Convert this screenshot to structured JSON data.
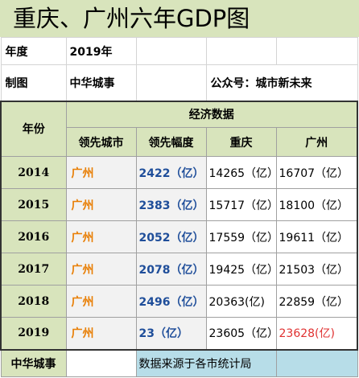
{
  "title": "重庆、广州六年GDP图",
  "meta": {
    "year_label": "年度",
    "year_value": "2019年",
    "maker_label": "制图",
    "maker_value": "中华城事",
    "account": "公众号：城市新未来"
  },
  "headers": {
    "year": "年份",
    "group": "经济数据",
    "lead_city": "领先城市",
    "lead_margin": "领先幅度",
    "chongqing": "重庆",
    "guangzhou": "广州"
  },
  "rows": [
    {
      "year": "2014",
      "lead_city": "广州",
      "margin": "2422（亿）",
      "chongqing": "14265（亿）",
      "guangzhou": "16707（亿）"
    },
    {
      "year": "2015",
      "lead_city": "广州",
      "margin": "2383（亿）",
      "chongqing": "15717（亿）",
      "guangzhou": "18100（亿）"
    },
    {
      "year": "2016",
      "lead_city": "广州",
      "margin": "2052（亿）",
      "chongqing": "17559（亿）",
      "guangzhou": "19611（亿）"
    },
    {
      "year": "2017",
      "lead_city": "广州",
      "margin": "2078（亿）",
      "chongqing": "19425（亿）",
      "guangzhou": "21503（亿）"
    },
    {
      "year": "2018",
      "lead_city": "广州",
      "margin": "2496（亿）",
      "chongqing": "20363(亿)",
      "guangzhou": "22859（亿）"
    },
    {
      "year": "2019",
      "lead_city": "广州",
      "margin": "23（亿）",
      "chongqing": "23605（亿）",
      "guangzhou": "23628(亿)"
    }
  ],
  "footer": {
    "brand": "中华城事",
    "note": "数据来源于各市统计局"
  },
  "colors": {
    "header_green": "#d8e4bc",
    "lead_orange": "#e87e04",
    "margin_blue": "#1f4e9a",
    "highlight_red": "#e03131",
    "footer_blue": "#b7dde8"
  }
}
